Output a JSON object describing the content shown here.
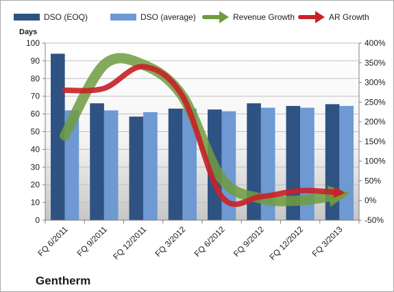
{
  "chart_data": {
    "type": "bar",
    "title": "",
    "company_label": "Gentherm",
    "categories": [
      "FQ 6/2011",
      "FQ 9/2011",
      "FQ 12/2011",
      "FQ 3/2012",
      "FQ 6/2012",
      "FQ 9/2012",
      "FQ 12/2012",
      "FQ 3/2013"
    ],
    "ylabel": "Days",
    "ylim": [
      0,
      100
    ],
    "yticks": [
      0,
      10,
      20,
      30,
      40,
      50,
      60,
      70,
      80,
      90,
      100
    ],
    "y2lim": [
      -50,
      400
    ],
    "y2ticks": [
      -50,
      0,
      50,
      100,
      150,
      200,
      250,
      300,
      350,
      400
    ],
    "y2tick_suffix": "%",
    "legend_position": "top",
    "bar_series": [
      {
        "name": "DSO (EOQ)",
        "color": "#2e5282",
        "values": [
          94,
          66,
          58.5,
          63,
          62.5,
          66,
          64.5,
          65.5
        ]
      },
      {
        "name": "DSO (average)",
        "color": "#6e99d3",
        "values": [
          62,
          62,
          61,
          63,
          61.5,
          63.5,
          63.5,
          64.5
        ]
      }
    ],
    "line_series": [
      {
        "name": "Revenue Growth",
        "color": "#6f9c3e",
        "values": [
          165,
          345,
          345,
          265,
          55,
          5,
          0,
          15
        ]
      },
      {
        "name": "AR Growth",
        "color": "#c8232a",
        "values": [
          280,
          285,
          340,
          265,
          10,
          10,
          25,
          20
        ]
      }
    ]
  }
}
